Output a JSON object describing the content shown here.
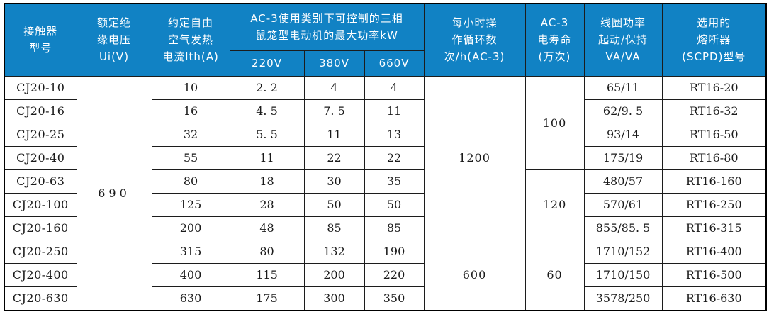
{
  "colors": {
    "header_bg": "#1182c4",
    "header_text": "#ffffff",
    "grid_line": "#1c1c1c",
    "body_text": "#1a1a1a"
  },
  "table": {
    "header": {
      "model": "接触器\n型号",
      "ui": "额定绝\n缘电压\nUi(V)",
      "ith": "约定自由\n空气发热\n电流Ith(A)",
      "kw_group": "AC-3使用类别下可控制的三相\n鼠笼型电动机的最大功率kW",
      "kw220": "220V",
      "kw380": "380V",
      "kw660": "660V",
      "cycles": "每小时操\n作循环数\n次/h(AC-3)",
      "life": "AC-3\n电寿命\n(万次)",
      "coil": "线圈功率\n起动/保持\nVA/VA",
      "fuse": "选用的\n熔断器\n(SCPD)型号"
    },
    "rows": [
      {
        "model": "CJ20-10",
        "ith": "10",
        "kw220": "2. 2",
        "kw380": "4",
        "kw660": "4",
        "coil": "65/11",
        "fuse": "RT16-20"
      },
      {
        "model": "CJ20-16",
        "ith": "16",
        "kw220": "4. 5",
        "kw380": "7. 5",
        "kw660": "11",
        "coil": "62/9. 5",
        "fuse": "RT16-32"
      },
      {
        "model": "CJ20-25",
        "ith": "32",
        "kw220": "5. 5",
        "kw380": "11",
        "kw660": "13",
        "coil": "93/14",
        "fuse": "RT16-50"
      },
      {
        "model": "CJ20-40",
        "ith": "55",
        "kw220": "11",
        "kw380": "22",
        "kw660": "22",
        "coil": "175/19",
        "fuse": "RT16-80"
      },
      {
        "model": "CJ20-63",
        "ith": "80",
        "kw220": "18",
        "kw380": "30",
        "kw660": "35",
        "coil": "480/57",
        "fuse": "RT16-160"
      },
      {
        "model": "CJ20-100",
        "ith": "125",
        "kw220": "28",
        "kw380": "50",
        "kw660": "50",
        "coil": "570/61",
        "fuse": "RT16-250"
      },
      {
        "model": "CJ20-160",
        "ith": "200",
        "kw220": "48",
        "kw380": "85",
        "kw660": "85",
        "coil": "855/85. 5",
        "fuse": "RT16-315"
      },
      {
        "model": "CJ20-250",
        "ith": "315",
        "kw220": "80",
        "kw380": "132",
        "kw660": "190",
        "coil": "1710/152",
        "fuse": "RT16-400"
      },
      {
        "model": "CJ20-400",
        "ith": "400",
        "kw220": "115",
        "kw380": "200",
        "kw660": "220",
        "coil": "1710/150",
        "fuse": "RT16-500"
      },
      {
        "model": "CJ20-630",
        "ith": "630",
        "kw220": "175",
        "kw380": "300",
        "kw660": "350",
        "coil": "3578/250",
        "fuse": "RT16-630"
      }
    ],
    "merged": {
      "ui": [
        {
          "value": "690",
          "start": 0,
          "span": 10
        }
      ],
      "cycles": [
        {
          "value": "1200",
          "start": 0,
          "span": 7
        },
        {
          "value": "600",
          "start": 7,
          "span": 3
        }
      ],
      "life": [
        {
          "value": "100",
          "start": 0,
          "span": 4
        },
        {
          "value": "120",
          "start": 4,
          "span": 3
        },
        {
          "value": "60",
          "start": 7,
          "span": 3
        }
      ]
    }
  }
}
